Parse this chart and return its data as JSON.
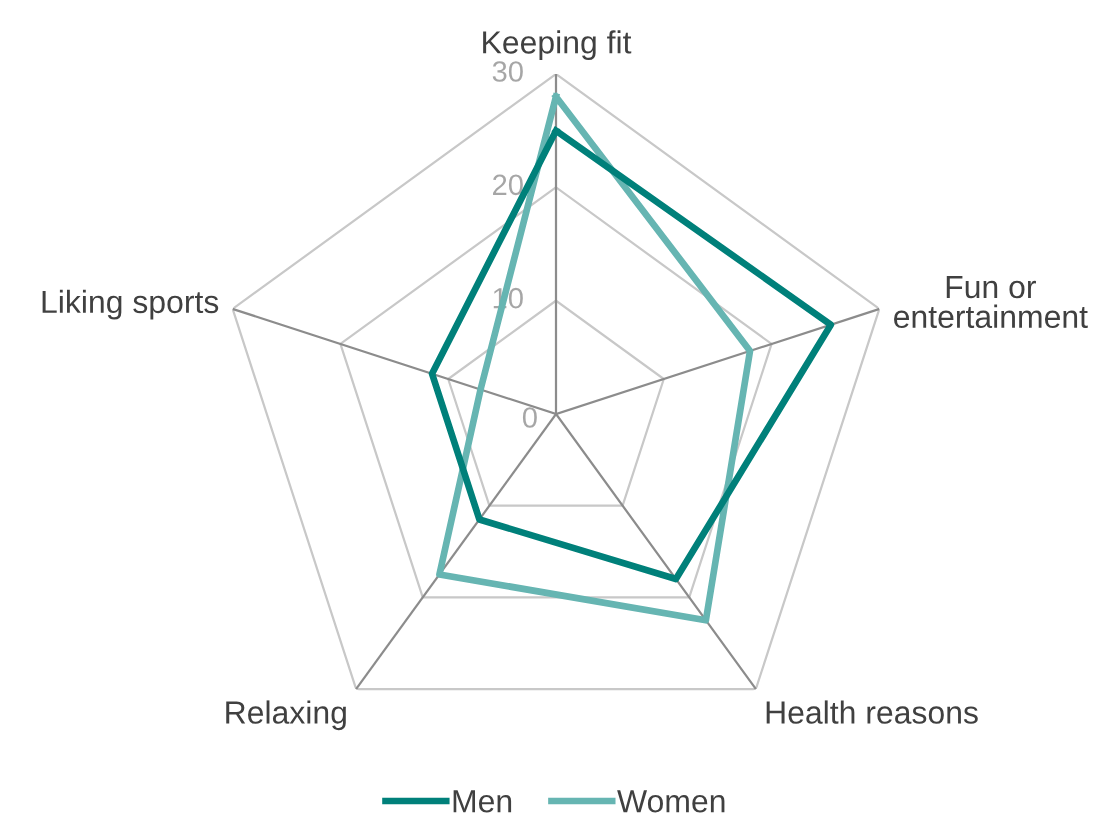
{
  "chart_data": {
    "type": "radar",
    "categories": [
      "Keeping fit",
      "Fun or\nentertainment",
      "Health reasons",
      "Relaxing",
      "Liking sports"
    ],
    "series": [
      {
        "name": "Men",
        "color": "#00807a",
        "values": [
          25,
          25.5,
          18,
          11.5,
          11.5
        ]
      },
      {
        "name": "Women",
        "color": "#66b5b2",
        "values": [
          28,
          18,
          22.5,
          17.5,
          7
        ]
      }
    ],
    "ylim": [
      0,
      30
    ],
    "yticks": [
      0,
      10,
      20,
      30
    ],
    "grid": true,
    "legend": "bottom",
    "line_style": "solid"
  }
}
